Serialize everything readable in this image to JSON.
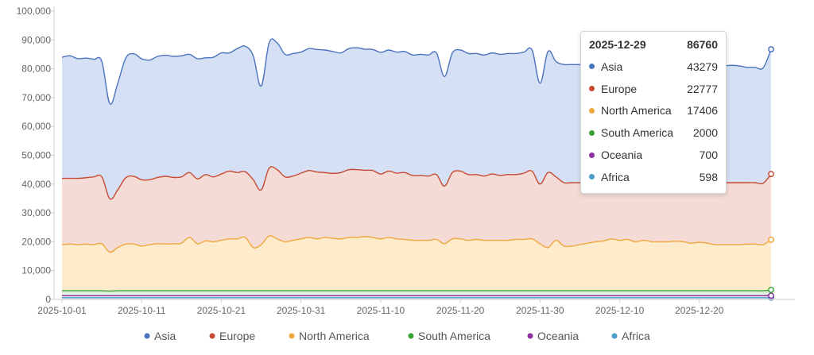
{
  "chart_data": {
    "type": "area",
    "stacked": true,
    "x": [
      "2025-10-01",
      "2025-10-02",
      "2025-10-03",
      "2025-10-04",
      "2025-10-05",
      "2025-10-06",
      "2025-10-07",
      "2025-10-08",
      "2025-10-09",
      "2025-10-10",
      "2025-10-11",
      "2025-10-12",
      "2025-10-13",
      "2025-10-14",
      "2025-10-15",
      "2025-10-16",
      "2025-10-17",
      "2025-10-18",
      "2025-10-19",
      "2025-10-20",
      "2025-10-21",
      "2025-10-22",
      "2025-10-23",
      "2025-10-24",
      "2025-10-25",
      "2025-10-26",
      "2025-10-27",
      "2025-10-28",
      "2025-10-29",
      "2025-10-30",
      "2025-10-31",
      "2025-11-01",
      "2025-11-02",
      "2025-11-03",
      "2025-11-04",
      "2025-11-05",
      "2025-11-06",
      "2025-11-07",
      "2025-11-08",
      "2025-11-09",
      "2025-11-10",
      "2025-11-11",
      "2025-11-12",
      "2025-11-13",
      "2025-11-14",
      "2025-11-15",
      "2025-11-16",
      "2025-11-17",
      "2025-11-18",
      "2025-11-19",
      "2025-11-20",
      "2025-11-21",
      "2025-11-22",
      "2025-11-23",
      "2025-11-24",
      "2025-11-25",
      "2025-11-26",
      "2025-11-27",
      "2025-11-28",
      "2025-11-29",
      "2025-11-30",
      "2025-12-01",
      "2025-12-02",
      "2025-12-03",
      "2025-12-04",
      "2025-12-05",
      "2025-12-06",
      "2025-12-07",
      "2025-12-08",
      "2025-12-09",
      "2025-12-10",
      "2025-12-11",
      "2025-12-12",
      "2025-12-13",
      "2025-12-14",
      "2025-12-15",
      "2025-12-16",
      "2025-12-17",
      "2025-12-18",
      "2025-12-19",
      "2025-12-20",
      "2025-12-21",
      "2025-12-22",
      "2025-12-23",
      "2025-12-24",
      "2025-12-25",
      "2025-12-26",
      "2025-12-27",
      "2025-12-28",
      "2025-12-29"
    ],
    "x_ticks": [
      "2025-10-01",
      "2025-10-11",
      "2025-10-21",
      "2025-10-31",
      "2025-11-10",
      "2025-11-20",
      "2025-11-30",
      "2025-12-10",
      "2025-12-20"
    ],
    "y_ticks": [
      "0",
      "10,000",
      "20,000",
      "30,000",
      "40,000",
      "50,000",
      "60,000",
      "70,000",
      "80,000",
      "90,000",
      "100,000"
    ],
    "ylim": [
      0,
      100000
    ],
    "series": [
      {
        "name": "Africa",
        "color": "#4c9ec9",
        "fill": "#dcecf5",
        "values": [
          600,
          600,
          600,
          600,
          600,
          600,
          600,
          600,
          600,
          600,
          600,
          600,
          600,
          600,
          600,
          600,
          600,
          600,
          600,
          600,
          600,
          600,
          600,
          600,
          600,
          600,
          600,
          600,
          600,
          600,
          600,
          600,
          600,
          600,
          600,
          600,
          600,
          600,
          600,
          600,
          600,
          600,
          600,
          600,
          600,
          600,
          600,
          600,
          600,
          600,
          600,
          600,
          600,
          600,
          600,
          600,
          600,
          600,
          600,
          600,
          600,
          600,
          600,
          600,
          600,
          600,
          600,
          600,
          600,
          600,
          600,
          600,
          600,
          600,
          600,
          600,
          600,
          600,
          600,
          600,
          600,
          600,
          600,
          600,
          600,
          600,
          600,
          600,
          600,
          598
        ]
      },
      {
        "name": "Oceania",
        "color": "#8e2ea0",
        "fill": "#ecdcee",
        "values": [
          700,
          700,
          700,
          700,
          700,
          700,
          700,
          700,
          700,
          700,
          700,
          700,
          700,
          700,
          700,
          700,
          700,
          700,
          700,
          700,
          700,
          700,
          700,
          700,
          700,
          700,
          700,
          700,
          700,
          700,
          700,
          700,
          700,
          700,
          700,
          700,
          700,
          700,
          700,
          700,
          700,
          700,
          700,
          700,
          700,
          700,
          700,
          700,
          700,
          700,
          700,
          700,
          700,
          700,
          700,
          700,
          700,
          700,
          700,
          700,
          700,
          700,
          700,
          700,
          700,
          700,
          700,
          700,
          700,
          700,
          700,
          700,
          700,
          700,
          700,
          700,
          700,
          700,
          700,
          700,
          700,
          700,
          700,
          700,
          700,
          700,
          700,
          700,
          700,
          700
        ]
      },
      {
        "name": "South America",
        "color": "#3aa135",
        "fill": "#dff0dc",
        "values": [
          1700,
          1700,
          1700,
          1700,
          1700,
          1700,
          1600,
          1700,
          1700,
          1700,
          1700,
          1700,
          1700,
          1700,
          1700,
          1700,
          1700,
          1700,
          1700,
          1700,
          1700,
          1700,
          1700,
          1700,
          1700,
          1700,
          1700,
          1700,
          1700,
          1700,
          1700,
          1700,
          1700,
          1700,
          1700,
          1700,
          1700,
          1700,
          1700,
          1700,
          1700,
          1700,
          1700,
          1700,
          1700,
          1700,
          1700,
          1700,
          1700,
          1700,
          1700,
          1700,
          1700,
          1700,
          1700,
          1700,
          1700,
          1700,
          1700,
          1700,
          1700,
          1700,
          1700,
          1700,
          1700,
          1700,
          1700,
          1700,
          1700,
          1700,
          1700,
          1700,
          1700,
          1700,
          1700,
          1700,
          1700,
          1700,
          1700,
          1700,
          1700,
          1700,
          1700,
          1700,
          1700,
          1700,
          1700,
          1700,
          1700,
          2000
        ]
      },
      {
        "name": "North America",
        "color": "#f0a73c",
        "fill": "#fdebcc",
        "values": [
          16000,
          16200,
          16000,
          16200,
          16000,
          16300,
          13500,
          15000,
          16200,
          16200,
          15500,
          16000,
          16300,
          16200,
          16300,
          16500,
          18500,
          16300,
          17300,
          17000,
          17500,
          18000,
          18000,
          18500,
          15000,
          16000,
          19000,
          18000,
          17000,
          17500,
          18000,
          18500,
          18000,
          18500,
          18200,
          18000,
          18500,
          18500,
          18800,
          18500,
          18000,
          18500,
          18000,
          17800,
          17500,
          17500,
          17500,
          17800,
          16300,
          18000,
          18000,
          17500,
          17800,
          17500,
          17500,
          17500,
          17500,
          17800,
          17800,
          18000,
          16300,
          15000,
          17500,
          15500,
          15500,
          16000,
          16500,
          17000,
          17300,
          18000,
          17500,
          17800,
          17000,
          17500,
          17000,
          17000,
          17000,
          17200,
          17000,
          16500,
          16800,
          16500,
          16000,
          16000,
          16000,
          16000,
          16200,
          16200,
          16000,
          17406
        ]
      },
      {
        "name": "Europe",
        "color": "#c64a33",
        "fill": "#f5dbd6",
        "values": [
          23000,
          22800,
          23000,
          23000,
          23500,
          23200,
          18500,
          20000,
          23000,
          23500,
          23000,
          22500,
          23000,
          23500,
          23000,
          23000,
          22500,
          22500,
          23000,
          22500,
          23000,
          23500,
          23000,
          22800,
          23500,
          19000,
          23500,
          24000,
          22500,
          22300,
          22800,
          23200,
          23200,
          22500,
          22500,
          23000,
          23500,
          23500,
          23000,
          23200,
          22500,
          23000,
          22800,
          23200,
          22500,
          22500,
          22300,
          22500,
          20000,
          23000,
          23500,
          22800,
          22500,
          22300,
          23000,
          22500,
          22800,
          22500,
          23000,
          23500,
          20700,
          26000,
          22000,
          22000,
          22000,
          21500,
          21500,
          21700,
          21000,
          21500,
          21500,
          21500,
          21500,
          22000,
          21800,
          22000,
          22000,
          22000,
          21600,
          20800,
          21600,
          21300,
          21500,
          21500,
          21500,
          21500,
          21300,
          21300,
          21300,
          22777
        ]
      },
      {
        "name": "Asia",
        "color": "#4a73be",
        "fill": "#d6e0f4",
        "values": [
          42000,
          42500,
          41500,
          41500,
          40800,
          40000,
          33000,
          37000,
          41500,
          42500,
          42000,
          41500,
          42000,
          42000,
          42000,
          42000,
          41000,
          41700,
          40500,
          41500,
          42000,
          41000,
          43000,
          43500,
          43000,
          36000,
          43500,
          44000,
          42500,
          42500,
          42000,
          42300,
          42500,
          42500,
          42300,
          41500,
          42000,
          42300,
          42000,
          42000,
          42200,
          42000,
          42000,
          42000,
          41800,
          42000,
          42000,
          42200,
          38000,
          41500,
          42000,
          42000,
          42000,
          42000,
          42000,
          42000,
          42000,
          42000,
          42000,
          42000,
          35000,
          42000,
          40000,
          41000,
          41000,
          41000,
          41300,
          41500,
          41500,
          41500,
          41800,
          41500,
          41500,
          41800,
          41800,
          41000,
          41000,
          40700,
          40700,
          40900,
          40700,
          40600,
          40600,
          40500,
          40700,
          40500,
          40000,
          40000,
          40000,
          43279
        ]
      }
    ],
    "legend": [
      "Asia",
      "Europe",
      "North America",
      "South America",
      "Oceania",
      "Africa"
    ],
    "legend_placement": "bottom",
    "grid": false
  },
  "tooltip": {
    "date": "2025-12-29",
    "total": "86760",
    "rows": [
      {
        "name": "Asia",
        "value": "43279",
        "color": "#4a73be"
      },
      {
        "name": "Europe",
        "value": "22777",
        "color": "#c64a33"
      },
      {
        "name": "North America",
        "value": "17406",
        "color": "#f0a73c"
      },
      {
        "name": "South America",
        "value": "2000",
        "color": "#3aa135"
      },
      {
        "name": "Oceania",
        "value": "700",
        "color": "#8e2ea0"
      },
      {
        "name": "Africa",
        "value": "598",
        "color": "#4c9ec9"
      }
    ]
  }
}
